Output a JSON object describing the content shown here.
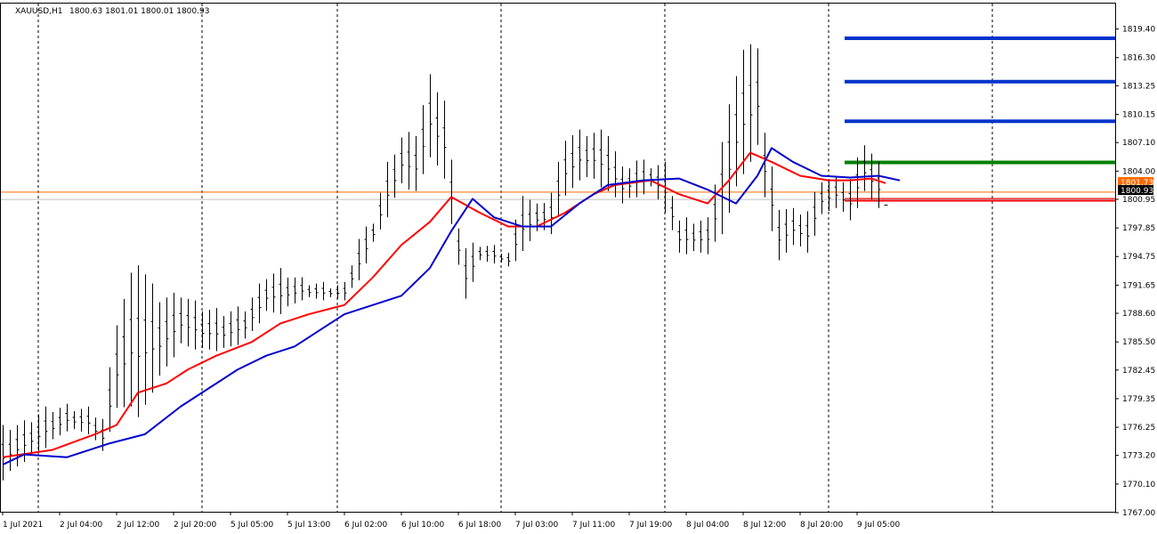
{
  "header": {
    "symbol": "XAUUSD,H1",
    "ohlc": "1800.63 1801.01 1800.01 1800.93"
  },
  "colors": {
    "background": "#ffffff",
    "axis": "#000000",
    "bars": "#000000",
    "ma_fast": "#ff0000",
    "ma_slow": "#0000cc",
    "level_blue": "#0033cc",
    "level_green": "#008000",
    "level_red": "#ff0000",
    "ask_line": "#ff6a00",
    "bid_tag": "#000000"
  },
  "price_tags": {
    "ask": "1801.73",
    "bid": "1800.93"
  },
  "chart_data": {
    "type": "candlestick",
    "title": "XAUUSD,H1",
    "timeframe": "H1",
    "ylim": [
      1767.0,
      1821.0
    ],
    "y_ticks": [
      1819.4,
      1816.3,
      1813.25,
      1810.15,
      1807.1,
      1804.0,
      1800.95,
      1797.85,
      1794.75,
      1791.65,
      1788.6,
      1785.5,
      1782.45,
      1779.35,
      1776.25,
      1773.2,
      1770.1,
      1767.0
    ],
    "x_labels": [
      {
        "bar": 0,
        "label": "1 Jul 2021"
      },
      {
        "bar": 16,
        "label": "2 Jul 04:00"
      },
      {
        "bar": 32,
        "label": "2 Jul 12:00"
      },
      {
        "bar": 48,
        "label": "2 Jul 20:00"
      },
      {
        "bar": 64,
        "label": "5 Jul 05:00"
      },
      {
        "bar": 80,
        "label": "5 Jul 13:00"
      },
      {
        "bar": 96,
        "label": "6 Jul 02:00"
      },
      {
        "bar": 112,
        "label": "6 Jul 10:00"
      },
      {
        "bar": 128,
        "label": "6 Jul 18:00"
      },
      {
        "bar": 144,
        "label": "7 Jul 03:00"
      },
      {
        "bar": 160,
        "label": "7 Jul 11:00"
      },
      {
        "bar": 176,
        "label": "7 Jul 19:00"
      },
      {
        "bar": 192,
        "label": "8 Jul 04:00"
      },
      {
        "bar": 208,
        "label": "8 Jul 12:00"
      },
      {
        "bar": 224,
        "label": "8 Jul 20:00"
      },
      {
        "bar": 240,
        "label": "9 Jul 05:00"
      }
    ],
    "day_separators_bar": [
      10,
      56,
      94,
      140,
      186,
      232,
      278
    ],
    "prices": [
      {
        "bar": 0,
        "high": 1776.5,
        "low": 1770.5
      },
      {
        "bar": 6,
        "high": 1777.0,
        "low": 1772.5
      },
      {
        "bar": 12,
        "high": 1778.5,
        "low": 1774.0
      },
      {
        "bar": 18,
        "high": 1778.8,
        "low": 1775.8
      },
      {
        "bar": 24,
        "high": 1778.5,
        "low": 1775.5
      },
      {
        "bar": 28,
        "high": 1777.5,
        "low": 1773.5
      },
      {
        "bar": 32,
        "high": 1788.0,
        "low": 1778.0
      },
      {
        "bar": 36,
        "high": 1793.0,
        "low": 1778.5
      },
      {
        "bar": 38,
        "high": 1794.5,
        "low": 1777.0
      },
      {
        "bar": 44,
        "high": 1790.5,
        "low": 1781.5
      },
      {
        "bar": 50,
        "high": 1791.0,
        "low": 1785.0
      },
      {
        "bar": 56,
        "high": 1789.5,
        "low": 1784.5
      },
      {
        "bar": 62,
        "high": 1789.0,
        "low": 1784.5
      },
      {
        "bar": 68,
        "high": 1789.5,
        "low": 1785.5
      },
      {
        "bar": 74,
        "high": 1793.0,
        "low": 1788.5
      },
      {
        "bar": 78,
        "high": 1793.5,
        "low": 1788.5
      },
      {
        "bar": 84,
        "high": 1792.5,
        "low": 1790.0
      },
      {
        "bar": 90,
        "high": 1792.0,
        "low": 1790.0
      },
      {
        "bar": 96,
        "high": 1792.0,
        "low": 1790.0
      },
      {
        "bar": 100,
        "high": 1797.0,
        "low": 1792.0
      },
      {
        "bar": 104,
        "high": 1799.0,
        "low": 1796.0
      },
      {
        "bar": 108,
        "high": 1805.0,
        "low": 1799.0
      },
      {
        "bar": 112,
        "high": 1808.0,
        "low": 1802.5
      },
      {
        "bar": 116,
        "high": 1808.5,
        "low": 1801.5
      },
      {
        "bar": 120,
        "high": 1814.5,
        "low": 1805.5
      },
      {
        "bar": 124,
        "high": 1812.0,
        "low": 1803.0
      },
      {
        "bar": 128,
        "high": 1798.5,
        "low": 1793.5
      },
      {
        "bar": 130,
        "high": 1796.0,
        "low": 1790.0
      },
      {
        "bar": 134,
        "high": 1796.5,
        "low": 1794.0
      },
      {
        "bar": 138,
        "high": 1796.0,
        "low": 1794.0
      },
      {
        "bar": 142,
        "high": 1795.5,
        "low": 1793.5
      },
      {
        "bar": 146,
        "high": 1802.0,
        "low": 1795.0
      },
      {
        "bar": 150,
        "high": 1800.5,
        "low": 1797.5
      },
      {
        "bar": 154,
        "high": 1802.0,
        "low": 1797.0
      },
      {
        "bar": 158,
        "high": 1808.0,
        "low": 1801.0
      },
      {
        "bar": 162,
        "high": 1808.5,
        "low": 1803.0
      },
      {
        "bar": 166,
        "high": 1808.5,
        "low": 1803.0
      },
      {
        "bar": 170,
        "high": 1808.5,
        "low": 1801.5
      },
      {
        "bar": 174,
        "high": 1804.5,
        "low": 1800.5
      },
      {
        "bar": 178,
        "high": 1805.5,
        "low": 1801.0
      },
      {
        "bar": 182,
        "high": 1805.0,
        "low": 1802.0
      },
      {
        "bar": 186,
        "high": 1805.0,
        "low": 1799.5
      },
      {
        "bar": 190,
        "high": 1799.0,
        "low": 1795.0
      },
      {
        "bar": 194,
        "high": 1799.0,
        "low": 1795.0
      },
      {
        "bar": 198,
        "high": 1799.0,
        "low": 1795.0
      },
      {
        "bar": 202,
        "high": 1807.5,
        "low": 1797.0
      },
      {
        "bar": 206,
        "high": 1815.0,
        "low": 1802.0
      },
      {
        "bar": 208,
        "high": 1817.5,
        "low": 1803.5
      },
      {
        "bar": 212,
        "high": 1818.0,
        "low": 1806.5
      },
      {
        "bar": 214,
        "high": 1808.5,
        "low": 1801.0
      },
      {
        "bar": 218,
        "high": 1800.5,
        "low": 1794.0
      },
      {
        "bar": 222,
        "high": 1800.0,
        "low": 1796.0
      },
      {
        "bar": 226,
        "high": 1800.0,
        "low": 1795.0
      },
      {
        "bar": 230,
        "high": 1803.5,
        "low": 1799.0
      },
      {
        "bar": 234,
        "high": 1803.5,
        "low": 1800.0
      },
      {
        "bar": 238,
        "high": 1803.5,
        "low": 1798.5
      },
      {
        "bar": 242,
        "high": 1807.5,
        "low": 1801.5
      },
      {
        "bar": 246,
        "high": 1805.0,
        "low": 1800.0
      },
      {
        "bar": 248,
        "high": 1801.0,
        "low": 1800.0
      }
    ],
    "series": [
      {
        "id": "ma_fast",
        "color": "#ff0000",
        "values": [
          {
            "bar": 0,
            "y": 1773.0
          },
          {
            "bar": 14,
            "y": 1773.8
          },
          {
            "bar": 26,
            "y": 1775.5
          },
          {
            "bar": 32,
            "y": 1776.5
          },
          {
            "bar": 38,
            "y": 1780.0
          },
          {
            "bar": 46,
            "y": 1781.0
          },
          {
            "bar": 52,
            "y": 1782.5
          },
          {
            "bar": 60,
            "y": 1784.0
          },
          {
            "bar": 70,
            "y": 1785.5
          },
          {
            "bar": 78,
            "y": 1787.5
          },
          {
            "bar": 86,
            "y": 1788.5
          },
          {
            "bar": 96,
            "y": 1789.5
          },
          {
            "bar": 104,
            "y": 1792.5
          },
          {
            "bar": 112,
            "y": 1796.0
          },
          {
            "bar": 120,
            "y": 1798.5
          },
          {
            "bar": 126,
            "y": 1801.2
          },
          {
            "bar": 134,
            "y": 1799.5
          },
          {
            "bar": 142,
            "y": 1798.0
          },
          {
            "bar": 150,
            "y": 1798.0
          },
          {
            "bar": 158,
            "y": 1799.5
          },
          {
            "bar": 166,
            "y": 1801.5
          },
          {
            "bar": 172,
            "y": 1802.5
          },
          {
            "bar": 182,
            "y": 1803.0
          },
          {
            "bar": 190,
            "y": 1801.5
          },
          {
            "bar": 198,
            "y": 1800.5
          },
          {
            "bar": 204,
            "y": 1803.0
          },
          {
            "bar": 210,
            "y": 1806.0
          },
          {
            "bar": 216,
            "y": 1805.0
          },
          {
            "bar": 224,
            "y": 1803.5
          },
          {
            "bar": 232,
            "y": 1803.0
          },
          {
            "bar": 238,
            "y": 1803.0
          },
          {
            "bar": 244,
            "y": 1803.2
          },
          {
            "bar": 248,
            "y": 1802.7
          }
        ]
      },
      {
        "id": "ma_slow",
        "color": "#0000cc",
        "values": [
          {
            "bar": 0,
            "y": 1772.2
          },
          {
            "bar": 6,
            "y": 1773.3
          },
          {
            "bar": 18,
            "y": 1773.0
          },
          {
            "bar": 30,
            "y": 1774.5
          },
          {
            "bar": 40,
            "y": 1775.5
          },
          {
            "bar": 50,
            "y": 1778.5
          },
          {
            "bar": 58,
            "y": 1780.5
          },
          {
            "bar": 66,
            "y": 1782.5
          },
          {
            "bar": 74,
            "y": 1784.0
          },
          {
            "bar": 82,
            "y": 1785.0
          },
          {
            "bar": 90,
            "y": 1787.0
          },
          {
            "bar": 96,
            "y": 1788.5
          },
          {
            "bar": 104,
            "y": 1789.5
          },
          {
            "bar": 112,
            "y": 1790.5
          },
          {
            "bar": 120,
            "y": 1793.5
          },
          {
            "bar": 126,
            "y": 1797.5
          },
          {
            "bar": 132,
            "y": 1801.0
          },
          {
            "bar": 138,
            "y": 1799.0
          },
          {
            "bar": 146,
            "y": 1798.0
          },
          {
            "bar": 154,
            "y": 1798.0
          },
          {
            "bar": 162,
            "y": 1800.5
          },
          {
            "bar": 170,
            "y": 1802.5
          },
          {
            "bar": 180,
            "y": 1803.0
          },
          {
            "bar": 190,
            "y": 1803.2
          },
          {
            "bar": 198,
            "y": 1802.0
          },
          {
            "bar": 206,
            "y": 1800.5
          },
          {
            "bar": 212,
            "y": 1803.5
          },
          {
            "bar": 216,
            "y": 1806.5
          },
          {
            "bar": 222,
            "y": 1805.0
          },
          {
            "bar": 230,
            "y": 1803.5
          },
          {
            "bar": 238,
            "y": 1803.3
          },
          {
            "bar": 246,
            "y": 1803.5
          },
          {
            "bar": 252,
            "y": 1803.0
          }
        ]
      }
    ],
    "levels": [
      {
        "price": 1818.4,
        "color": "#0033cc",
        "bar_from": 232
      },
      {
        "price": 1813.7,
        "color": "#0033cc",
        "bar_from": 232
      },
      {
        "price": 1809.4,
        "color": "#0033cc",
        "bar_from": 232
      },
      {
        "price": 1804.95,
        "color": "#008000",
        "bar_from": 232
      },
      {
        "price": 1800.9,
        "color": "#ff0000",
        "bar_from": 232
      }
    ],
    "ask_line_price": 1801.73,
    "bid_line_price": 1800.93,
    "grid": false
  }
}
